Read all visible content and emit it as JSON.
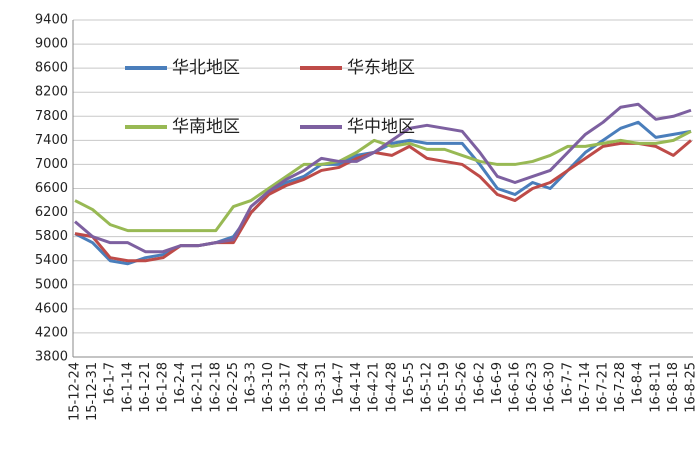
{
  "chart_data": {
    "type": "line",
    "categories": [
      "15-12-24",
      "15-12-31",
      "16-1-7",
      "16-1-14",
      "16-1-21",
      "16-1-28",
      "16-2-4",
      "16-2-11",
      "16-2-18",
      "16-2-25",
      "16-3-3",
      "16-3-10",
      "16-3-17",
      "16-3-24",
      "16-3-31",
      "16-4-7",
      "16-4-14",
      "16-4-21",
      "16-4-28",
      "16-5-5",
      "16-5-12",
      "16-5-19",
      "16-5-26",
      "16-6-2",
      "16-6-9",
      "16-6-16",
      "16-6-23",
      "16-6-30",
      "16-7-7",
      "16-7-14",
      "16-7-21",
      "16-7-28",
      "16-8-4",
      "16-8-11",
      "16-8-18",
      "16-8-25"
    ],
    "series": [
      {
        "name": "华北地区",
        "color": "#4a7ebb",
        "values": [
          5850,
          5700,
          5400,
          5350,
          5450,
          5500,
          5650,
          5650,
          5700,
          5800,
          6200,
          6500,
          6700,
          6800,
          7000,
          7000,
          7150,
          7200,
          7350,
          7400,
          7350,
          7350,
          7350,
          7000,
          6600,
          6500,
          6700,
          6600,
          6900,
          7200,
          7400,
          7600,
          7700,
          7450,
          7500,
          7550
        ]
      },
      {
        "name": "华东地区",
        "color": "#be4b48",
        "values": [
          5850,
          5800,
          5450,
          5400,
          5400,
          5450,
          5650,
          5650,
          5700,
          5700,
          6200,
          6500,
          6650,
          6750,
          6900,
          6950,
          7100,
          7200,
          7150,
          7300,
          7100,
          7050,
          7000,
          6800,
          6500,
          6400,
          6600,
          6700,
          6900,
          7100,
          7300,
          7350,
          7350,
          7300,
          7150,
          7400
        ]
      },
      {
        "name": "华南地区",
        "color": "#98b954",
        "values": [
          6400,
          6250,
          6000,
          5900,
          5900,
          5900,
          5900,
          5900,
          5900,
          6300,
          6400,
          6600,
          6800,
          7000,
          7000,
          7050,
          7200,
          7400,
          7300,
          7350,
          7250,
          7250,
          7150,
          7050,
          7000,
          7000,
          7050,
          7150,
          7300,
          7300,
          7350,
          7400,
          7350,
          7350,
          7400,
          7550
        ]
      },
      {
        "name": "华中地区",
        "color": "#7d60a0",
        "values": [
          6050,
          5800,
          5700,
          5700,
          5550,
          5550,
          5650,
          5650,
          5700,
          5750,
          6300,
          6550,
          6750,
          6900,
          7100,
          7050,
          7050,
          7200,
          7400,
          7600,
          7650,
          7600,
          7550,
          7200,
          6800,
          6700,
          6800,
          6900,
          7200,
          7500,
          7700,
          7950,
          8000,
          7750,
          7800,
          7900
        ]
      }
    ],
    "ylim": [
      3800,
      9400
    ],
    "yticks": [
      3800,
      4200,
      4600,
      5000,
      5400,
      5800,
      6200,
      6600,
      7000,
      7400,
      7800,
      8200,
      8600,
      9000,
      9400
    ],
    "grid": true
  }
}
